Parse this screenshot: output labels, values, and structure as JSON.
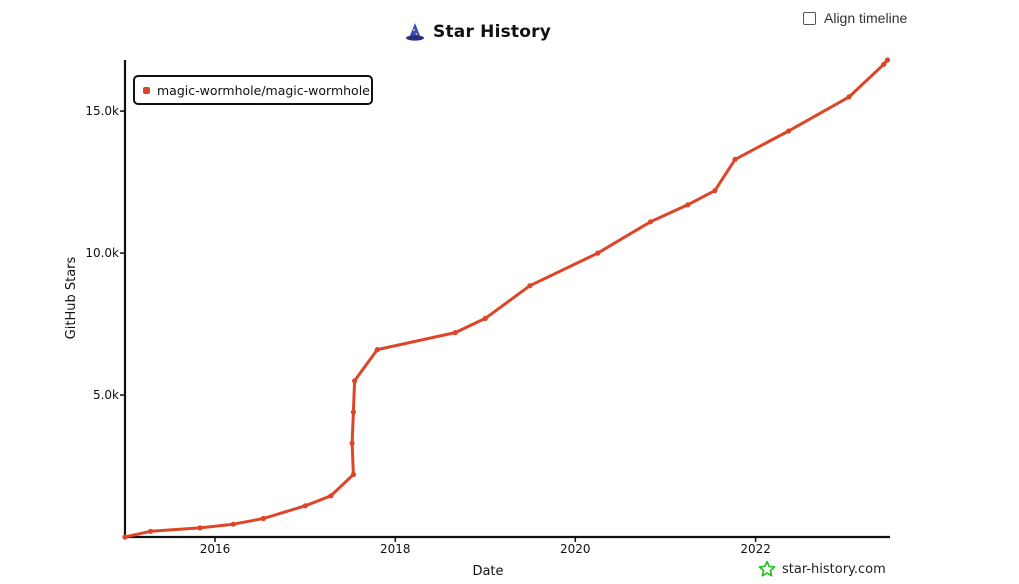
{
  "header": {
    "title": "Star History",
    "logo_icon": "wizard-hat-icon"
  },
  "controls": {
    "align_timeline_label": "Align timeline",
    "align_timeline_checked": false
  },
  "brand": {
    "text": "star-history.com",
    "icon": "star-outline-icon",
    "color": "#22c31d"
  },
  "chart_data": {
    "type": "line",
    "xlabel": "Date",
    "ylabel": "GitHub Stars",
    "x_ticks": [
      "2016",
      "2018",
      "2020",
      "2022"
    ],
    "y_ticks": [
      "5.0k",
      "10.0k",
      "15.0k"
    ],
    "xlim": [
      "2015-01-01",
      "2023-06-30"
    ],
    "ylim": [
      0,
      16800
    ],
    "grid": false,
    "legend_position": "top-left",
    "series": [
      {
        "name": "magic-wormhole/magic-wormhole",
        "color": "#dd4528",
        "points": [
          [
            "2015-01-01",
            0
          ],
          [
            "2015-04-15",
            200
          ],
          [
            "2015-11-01",
            320
          ],
          [
            "2016-03-15",
            450
          ],
          [
            "2016-07-15",
            650
          ],
          [
            "2017-01-01",
            1100
          ],
          [
            "2017-04-15",
            1450
          ],
          [
            "2017-07-15",
            2200
          ],
          [
            "2017-07-10",
            3300
          ],
          [
            "2017-07-15",
            4400
          ],
          [
            "2017-07-20",
            5500
          ],
          [
            "2017-10-20",
            6600
          ],
          [
            "2018-09-01",
            7200
          ],
          [
            "2019-01-01",
            7700
          ],
          [
            "2019-07-01",
            8850
          ],
          [
            "2020-04-01",
            10000
          ],
          [
            "2020-11-01",
            11100
          ],
          [
            "2021-04-01",
            11700
          ],
          [
            "2021-07-20",
            12200
          ],
          [
            "2021-10-10",
            13300
          ],
          [
            "2022-05-15",
            14300
          ],
          [
            "2023-01-15",
            15500
          ],
          [
            "2023-06-05",
            16650
          ],
          [
            "2023-06-20",
            16800
          ]
        ]
      }
    ]
  }
}
